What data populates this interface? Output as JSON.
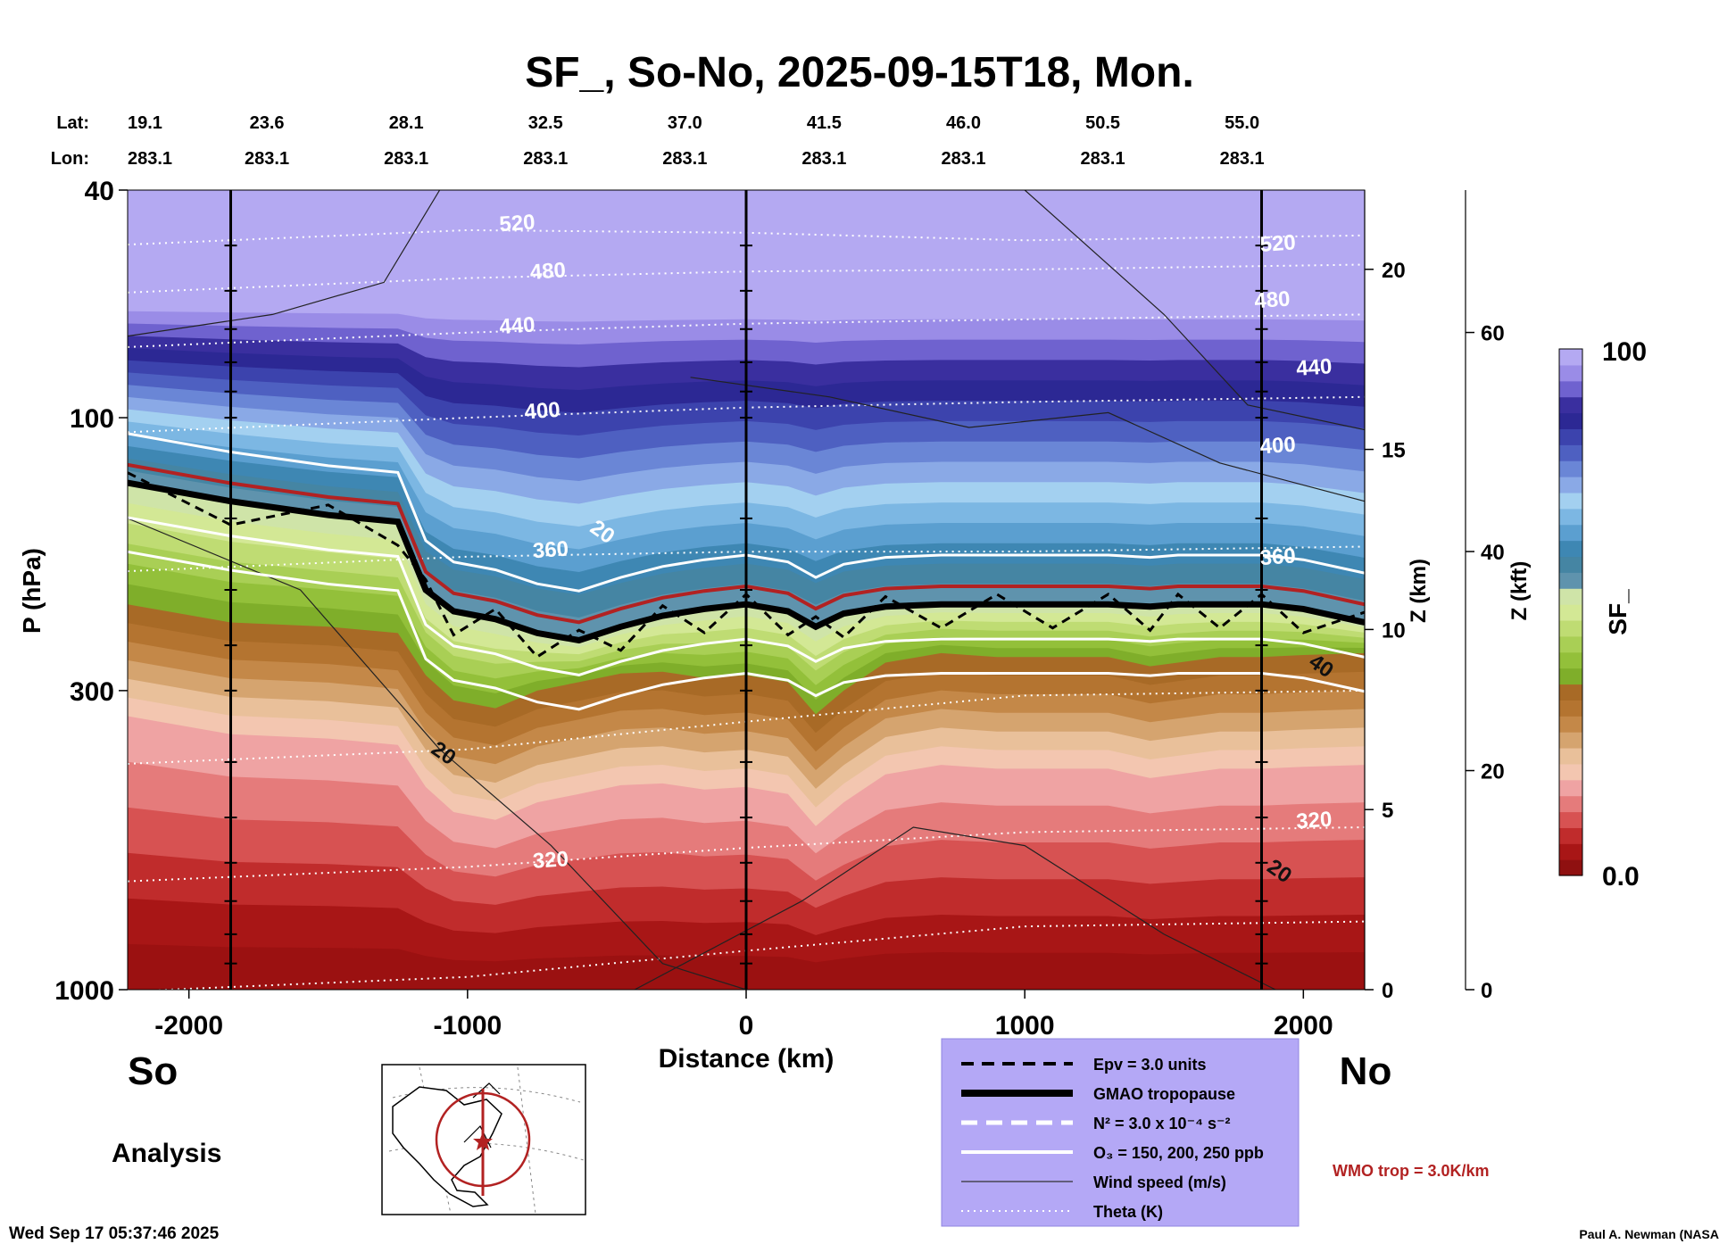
{
  "colors": {
    "band": [
      "#8f1010",
      "#a81616",
      "#c02c2c",
      "#d75252",
      "#e57b7b",
      "#efa3a3",
      "#f3c6b0",
      "#e9c09a",
      "#d5a46f",
      "#c48848",
      "#b47430",
      "#a86a26",
      "#7fae2a",
      "#93c03a",
      "#a9cf55",
      "#bfdc73",
      "#d3e895",
      "#cfe4a8",
      "#5f93ad",
      "#4585a3",
      "#3e87b3",
      "#5b9fd0",
      "#7cb7e3",
      "#a3d0f0",
      "#8aa9e6",
      "#6a86d6",
      "#4e60c1",
      "#3c43ad",
      "#2c2894",
      "#3a2f9f",
      "#6f62cf",
      "#9a8ce7",
      "#b4a9f2"
    ],
    "accent_red": "#b22222",
    "legend_bg": "#b4a8f6"
  },
  "chart_data": {
    "type": "heatmap",
    "title": "SF_, So-No, 2025-09-15T18, Mon.",
    "xlabel": "Distance (km)",
    "ylabel": "P (hPa)",
    "xlim": [
      -2220,
      2220
    ],
    "ylim_hpa": [
      1000,
      40
    ],
    "x_ticks": [
      -2000,
      -1000,
      0,
      1000,
      2000
    ],
    "x_tick_labels": [
      "-2000",
      "-1000",
      "0",
      "1000",
      "2000"
    ],
    "y_ticks": [
      40,
      100,
      300,
      1000
    ],
    "y_tick_labels": [
      "40",
      "100",
      "300",
      "1000"
    ],
    "lat_label": "Lat:",
    "lon_label": "Lon:",
    "latlon_positions_km": [
      -2220,
      -1720,
      -1220,
      -720,
      -220,
      280,
      780,
      1280,
      1780
    ],
    "lats": [
      "19.1",
      "23.6",
      "28.1",
      "32.5",
      "37.0",
      "41.5",
      "46.0",
      "50.5",
      "55.0"
    ],
    "lons": [
      "283.1",
      "283.1",
      "283.1",
      "283.1",
      "283.1",
      "283.1",
      "283.1",
      "283.1",
      "283.1"
    ],
    "z_km_axis": {
      "label": "Z (km)",
      "ticks_km": [
        0,
        5,
        10,
        15,
        20
      ],
      "tick_labels": [
        "0",
        "5",
        "10",
        "15",
        "20"
      ]
    },
    "z_kft_axis": {
      "label": "Z (kft)",
      "ticks_kft": [
        0,
        20,
        40,
        60
      ],
      "tick_labels": [
        "0",
        "20",
        "40",
        "60"
      ]
    },
    "colorbar": {
      "label": "SF_",
      "min_label": "0.0",
      "max_label": "100",
      "min": 0,
      "max": 100
    },
    "vertical_lines_km": [
      -1850,
      0,
      1850
    ],
    "field_profile": {
      "x_km": [
        -2220,
        -1850,
        -1500,
        -1250,
        -1150,
        -1050,
        -900,
        -750,
        -600,
        -450,
        -300,
        -150,
        0,
        150,
        250,
        350,
        500,
        700,
        900,
        1100,
        1300,
        1450,
        1550,
        1700,
        1850,
        2000,
        2220
      ],
      "tropopause_hpa": [
        130,
        140,
        148,
        152,
        200,
        218,
        225,
        238,
        245,
        232,
        222,
        216,
        212,
        218,
        232,
        220,
        214,
        212,
        212,
        212,
        212,
        214,
        212,
        212,
        212,
        216,
        228
      ],
      "base_hpa": [
        212,
        228,
        232,
        238,
        282,
        312,
        322,
        300,
        290,
        280,
        278,
        285,
        282,
        290,
        330,
        300,
        268,
        258,
        262,
        262,
        262,
        272,
        268,
        262,
        262,
        260,
        258
      ]
    },
    "annotations": [
      {
        "text": "520",
        "x_km": -820,
        "p_hpa": 47
      },
      {
        "text": "480",
        "x_km": -710,
        "p_hpa": 57
      },
      {
        "text": "440",
        "x_km": -820,
        "p_hpa": 71
      },
      {
        "text": "400",
        "x_km": -730,
        "p_hpa": 100
      },
      {
        "text": "360",
        "x_km": -700,
        "p_hpa": 175
      },
      {
        "text": "20",
        "x_km": -530,
        "p_hpa": 162
      },
      {
        "text": "20",
        "x_km": -1100,
        "p_hpa": 395
      },
      {
        "text": "320",
        "x_km": -700,
        "p_hpa": 610
      },
      {
        "text": "520",
        "x_km": 1910,
        "p_hpa": 51
      },
      {
        "text": "480",
        "x_km": 1890,
        "p_hpa": 64
      },
      {
        "text": "440",
        "x_km": 2040,
        "p_hpa": 84
      },
      {
        "text": "400",
        "x_km": 1910,
        "p_hpa": 115
      },
      {
        "text": "360",
        "x_km": 1910,
        "p_hpa": 180
      },
      {
        "text": "40",
        "x_km": 2050,
        "p_hpa": 278
      },
      {
        "text": "320",
        "x_km": 2040,
        "p_hpa": 520
      },
      {
        "text": "20",
        "x_km": 1900,
        "p_hpa": 635
      }
    ]
  },
  "labels": {
    "so": "So",
    "no": "No",
    "analysis": "Analysis",
    "timestamp": "Wed Sep 17 05:37:46 2025",
    "credit": "Paul A. Newman (NASA",
    "wmo_trop": "WMO trop = 3.0K/km"
  },
  "legend": {
    "items": [
      {
        "style": "dashed-black",
        "label": "Epv = 3.0 units"
      },
      {
        "style": "thick-black",
        "label": "GMAO tropopause"
      },
      {
        "style": "dashed-white",
        "label": "N² = 3.0 x 10⁻⁴ s⁻²"
      },
      {
        "style": "solid-white",
        "label": "O₃ = 150, 200, 250 ppb"
      },
      {
        "style": "thin-black",
        "label": "Wind speed (m/s)"
      },
      {
        "style": "dotted-white",
        "label": "Theta (K)"
      }
    ]
  }
}
